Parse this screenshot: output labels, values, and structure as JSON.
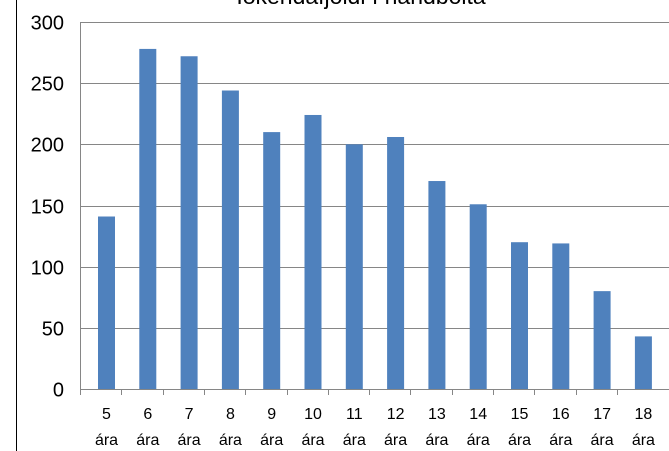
{
  "chart_data": {
    "type": "bar",
    "title": "Iðkendafjöldi í handbolta",
    "categories_top": [
      "5",
      "6",
      "7",
      "8",
      "9",
      "10",
      "11",
      "12",
      "13",
      "14",
      "15",
      "16",
      "17",
      "18"
    ],
    "categories_bottom": [
      "ára",
      "ára",
      "ára",
      "ára",
      "ára",
      "ára",
      "ára",
      "ára",
      "ára",
      "ára",
      "ára",
      "ára",
      "ára",
      "ára"
    ],
    "values": [
      141,
      278,
      272,
      244,
      210,
      224,
      200,
      206,
      170,
      151,
      120,
      119,
      80,
      43
    ],
    "yticks": [
      "0",
      "50",
      "100",
      "150",
      "200",
      "250",
      "300"
    ],
    "ylim": [
      0,
      300
    ],
    "grid": true,
    "bar_color": "#4F81BD",
    "gridline_color": "#868686"
  }
}
